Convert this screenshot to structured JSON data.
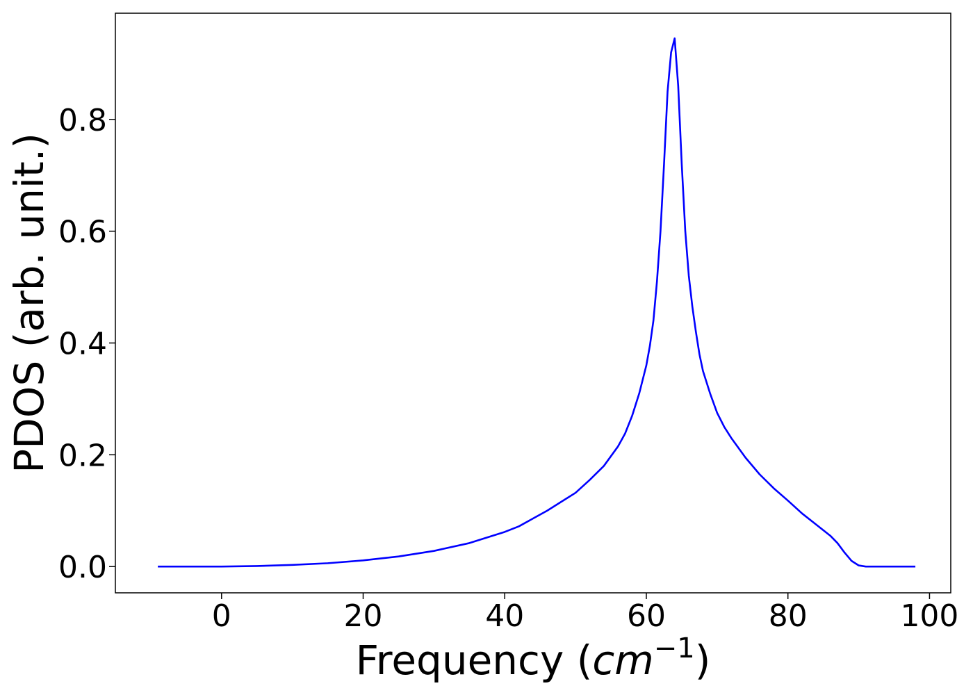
{
  "chart_data": {
    "type": "line",
    "title": "",
    "xlabel": "Frequency",
    "xlabel_unit": "cm",
    "xlabel_unit_exponent": "−1",
    "ylabel": "PDOS (arb. unit.)",
    "xlim": [
      -15,
      103
    ],
    "ylim": [
      -0.047,
      0.99
    ],
    "xticks": [
      0,
      20,
      40,
      60,
      80,
      100
    ],
    "xtick_labels": [
      "0",
      "20",
      "40",
      "60",
      "80",
      "100"
    ],
    "yticks": [
      0.0,
      0.2,
      0.4,
      0.6,
      0.8
    ],
    "ytick_labels": [
      "0.0",
      "0.2",
      "0.4",
      "0.6",
      "0.8"
    ],
    "grid": false,
    "legend": "none",
    "series": [
      {
        "color": "#0000ff",
        "x": [
          -9,
          0,
          5,
          10,
          15,
          20,
          25,
          30,
          35,
          40,
          42,
          44,
          46,
          48,
          50,
          52,
          54,
          56,
          57,
          58,
          59,
          60,
          60.5,
          61,
          61.5,
          62,
          62.5,
          63,
          63.5,
          64,
          64.5,
          65,
          65.5,
          66,
          66.5,
          67,
          67.5,
          68,
          69,
          70,
          71,
          72,
          74,
          76,
          78,
          80,
          82,
          84,
          86,
          87,
          88,
          89,
          90,
          91,
          92,
          95,
          98
        ],
        "y": [
          0.0,
          0.0,
          0.001,
          0.003,
          0.006,
          0.011,
          0.018,
          0.028,
          0.042,
          0.062,
          0.072,
          0.086,
          0.1,
          0.116,
          0.132,
          0.155,
          0.18,
          0.215,
          0.238,
          0.27,
          0.31,
          0.36,
          0.395,
          0.44,
          0.51,
          0.6,
          0.72,
          0.85,
          0.92,
          0.945,
          0.86,
          0.72,
          0.6,
          0.52,
          0.465,
          0.42,
          0.38,
          0.35,
          0.31,
          0.275,
          0.25,
          0.23,
          0.195,
          0.165,
          0.14,
          0.118,
          0.095,
          0.075,
          0.055,
          0.042,
          0.025,
          0.01,
          0.002,
          0.0,
          0.0,
          0.0,
          0.0
        ]
      }
    ]
  }
}
